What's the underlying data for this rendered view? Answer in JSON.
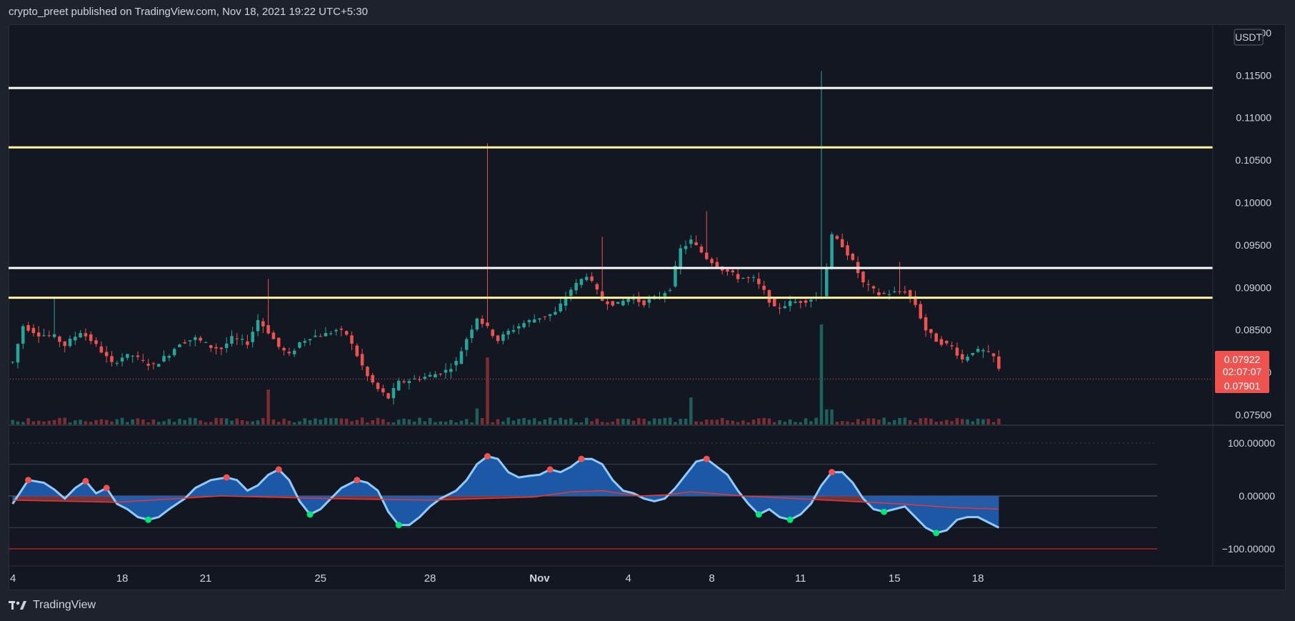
{
  "header": {
    "attribution": "crypto_preet published on TradingView.com, Nov 18, 2021 19:22 UTC+5:30"
  },
  "footer": {
    "brand": "TradingView"
  },
  "price_axis": {
    "currency": "USDT",
    "ticks": [
      "0.12000",
      "0.11500",
      "0.11000",
      "0.10500",
      "0.10000",
      "0.09500",
      "0.09000",
      "0.08500",
      "0.08000",
      "0.07500"
    ],
    "last_price": "0.07922",
    "countdown": "02:07:07",
    "second_price": "0.07901"
  },
  "osc_axis": {
    "ticks": [
      "100.00000",
      "0.00000",
      "−100.00000"
    ]
  },
  "time_axis": {
    "ticks": [
      "4",
      "18",
      "21",
      "25",
      "28",
      "Nov",
      "4",
      "8",
      "11",
      "15",
      "18"
    ]
  },
  "colors": {
    "background": "#131722",
    "bull": "#26a69a",
    "bear": "#ef5350",
    "white_line": "#ffffff",
    "yellow_line": "#fff59d",
    "wave_light": "#90caf9",
    "wave_dark": "#1e5fb4",
    "red_band": "#b2474f"
  },
  "chart_data": {
    "type": "candlestick",
    "title": "",
    "y_unit": "USDT",
    "ylim": [
      0.0742,
      0.1205
    ],
    "horizontal_levels": [
      {
        "price": 0.1135,
        "color": "white"
      },
      {
        "price": 0.1065,
        "color": "yellow"
      },
      {
        "price": 0.0923,
        "color": "white"
      },
      {
        "price": 0.0888,
        "color": "yellow"
      }
    ],
    "price_path": [
      [
        0,
        0.0812
      ],
      [
        2,
        0.0855
      ],
      [
        5,
        0.0845
      ],
      [
        8,
        0.0842
      ],
      [
        10,
        0.0832
      ],
      [
        13,
        0.0848
      ],
      [
        15,
        0.0838
      ],
      [
        17,
        0.0825
      ],
      [
        19,
        0.081
      ],
      [
        21,
        0.0818
      ],
      [
        23,
        0.082
      ],
      [
        25,
        0.0812
      ],
      [
        27,
        0.0808
      ],
      [
        30,
        0.0822
      ],
      [
        32,
        0.0835
      ],
      [
        35,
        0.084
      ],
      [
        38,
        0.083
      ],
      [
        40,
        0.0828
      ],
      [
        42,
        0.084
      ],
      [
        45,
        0.0835
      ],
      [
        47,
        0.0862
      ],
      [
        49,
        0.0848
      ],
      [
        51,
        0.083
      ],
      [
        53,
        0.082
      ],
      [
        55,
        0.0835
      ],
      [
        57,
        0.0842
      ],
      [
        60,
        0.0845
      ],
      [
        62,
        0.085
      ],
      [
        64,
        0.0845
      ],
      [
        66,
        0.082
      ],
      [
        68,
        0.0795
      ],
      [
        70,
        0.078
      ],
      [
        72,
        0.077
      ],
      [
        74,
        0.0788
      ],
      [
        77,
        0.0792
      ],
      [
        80,
        0.0796
      ],
      [
        83,
        0.0802
      ],
      [
        85,
        0.0812
      ],
      [
        87,
        0.084
      ],
      [
        89,
        0.0865
      ],
      [
        91,
        0.0852
      ],
      [
        93,
        0.0838
      ],
      [
        95,
        0.0848
      ],
      [
        98,
        0.0858
      ],
      [
        101,
        0.0865
      ],
      [
        104,
        0.087
      ],
      [
        107,
        0.0898
      ],
      [
        110,
        0.0915
      ],
      [
        113,
        0.0885
      ],
      [
        116,
        0.088
      ],
      [
        118,
        0.0888
      ],
      [
        121,
        0.0882
      ],
      [
        124,
        0.089
      ],
      [
        126,
        0.09
      ],
      [
        128,
        0.0945
      ],
      [
        130,
        0.0955
      ],
      [
        133,
        0.0935
      ],
      [
        136,
        0.0922
      ],
      [
        139,
        0.0912
      ],
      [
        142,
        0.091
      ],
      [
        144,
        0.0895
      ],
      [
        146,
        0.0875
      ],
      [
        149,
        0.0882
      ],
      [
        152,
        0.0885
      ],
      [
        155,
        0.089
      ],
      [
        157,
        0.096
      ],
      [
        159,
        0.095
      ],
      [
        161,
        0.093
      ],
      [
        163,
        0.0905
      ],
      [
        166,
        0.0892
      ],
      [
        169,
        0.0894
      ],
      [
        171,
        0.0896
      ],
      [
        173,
        0.088
      ],
      [
        175,
        0.085
      ],
      [
        177,
        0.0838
      ],
      [
        180,
        0.083
      ],
      [
        182,
        0.0815
      ],
      [
        184,
        0.0825
      ],
      [
        186,
        0.0825
      ],
      [
        188,
        0.0818
      ],
      [
        189,
        0.0803
      ]
    ],
    "wick_spikes": [
      {
        "index": 8,
        "high": 0.0889
      },
      {
        "index": 49,
        "high": 0.091
      },
      {
        "index": 91,
        "high": 0.107
      },
      {
        "index": 155,
        "high": 0.1155
      },
      {
        "index": 133,
        "high": 0.099
      },
      {
        "index": 113,
        "high": 0.096
      },
      {
        "index": 170,
        "high": 0.093
      }
    ],
    "volume_spikes": [
      {
        "index": 49,
        "value": 0.35
      },
      {
        "index": 91,
        "value": 0.67
      },
      {
        "index": 89,
        "value": 0.16
      },
      {
        "index": 130,
        "value": 0.27
      },
      {
        "index": 155,
        "value": 1.0
      },
      {
        "index": 156,
        "value": 0.15
      },
      {
        "index": 157,
        "value": 0.15
      }
    ],
    "oscillator": {
      "range": [
        -100,
        100
      ],
      "wave": [
        [
          0,
          -15
        ],
        [
          3,
          30
        ],
        [
          6,
          25
        ],
        [
          8,
          12
        ],
        [
          10,
          -5
        ],
        [
          12,
          15
        ],
        [
          14,
          28
        ],
        [
          16,
          5
        ],
        [
          18,
          15
        ],
        [
          20,
          -15
        ],
        [
          22,
          -25
        ],
        [
          24,
          -40
        ],
        [
          26,
          -45
        ],
        [
          28,
          -40
        ],
        [
          30,
          -25
        ],
        [
          33,
          -5
        ],
        [
          35,
          15
        ],
        [
          38,
          30
        ],
        [
          41,
          35
        ],
        [
          43,
          30
        ],
        [
          45,
          10
        ],
        [
          47,
          20
        ],
        [
          49,
          40
        ],
        [
          51,
          50
        ],
        [
          53,
          30
        ],
        [
          55,
          -10
        ],
        [
          57,
          -35
        ],
        [
          59,
          -25
        ],
        [
          61,
          -5
        ],
        [
          63,
          15
        ],
        [
          66,
          30
        ],
        [
          68,
          25
        ],
        [
          70,
          10
        ],
        [
          72,
          -30
        ],
        [
          74,
          -55
        ],
        [
          76,
          -55
        ],
        [
          78,
          -40
        ],
        [
          80,
          -20
        ],
        [
          82,
          -5
        ],
        [
          85,
          10
        ],
        [
          87,
          30
        ],
        [
          89,
          60
        ],
        [
          91,
          75
        ],
        [
          93,
          70
        ],
        [
          95,
          45
        ],
        [
          97,
          35
        ],
        [
          99,
          38
        ],
        [
          101,
          40
        ],
        [
          103,
          50
        ],
        [
          105,
          45
        ],
        [
          107,
          55
        ],
        [
          109,
          70
        ],
        [
          111,
          70
        ],
        [
          113,
          60
        ],
        [
          115,
          30
        ],
        [
          117,
          10
        ],
        [
          119,
          5
        ],
        [
          121,
          -5
        ],
        [
          123,
          -10
        ],
        [
          125,
          -5
        ],
        [
          127,
          15
        ],
        [
          129,
          40
        ],
        [
          131,
          65
        ],
        [
          133,
          70
        ],
        [
          135,
          55
        ],
        [
          137,
          40
        ],
        [
          139,
          10
        ],
        [
          141,
          -15
        ],
        [
          143,
          -35
        ],
        [
          145,
          -25
        ],
        [
          147,
          -40
        ],
        [
          149,
          -45
        ],
        [
          151,
          -35
        ],
        [
          153,
          -15
        ],
        [
          155,
          20
        ],
        [
          157,
          45
        ],
        [
          159,
          45
        ],
        [
          161,
          25
        ],
        [
          163,
          -5
        ],
        [
          165,
          -25
        ],
        [
          167,
          -30
        ],
        [
          169,
          -25
        ],
        [
          171,
          -20
        ],
        [
          173,
          -40
        ],
        [
          175,
          -60
        ],
        [
          177,
          -70
        ],
        [
          179,
          -65
        ],
        [
          181,
          -45
        ],
        [
          183,
          -40
        ],
        [
          185,
          -40
        ],
        [
          187,
          -50
        ],
        [
          189,
          -60
        ]
      ],
      "signal": [
        [
          0,
          -8
        ],
        [
          20,
          -12
        ],
        [
          40,
          0
        ],
        [
          60,
          -5
        ],
        [
          80,
          -8
        ],
        [
          100,
          -2
        ],
        [
          107,
          8
        ],
        [
          113,
          10
        ],
        [
          120,
          0
        ],
        [
          125,
          2
        ],
        [
          130,
          8
        ],
        [
          140,
          0
        ],
        [
          150,
          -5
        ],
        [
          160,
          -10
        ],
        [
          170,
          -15
        ],
        [
          180,
          -22
        ],
        [
          189,
          -25
        ]
      ],
      "upper_level": 60,
      "lower_level": -60
    }
  }
}
